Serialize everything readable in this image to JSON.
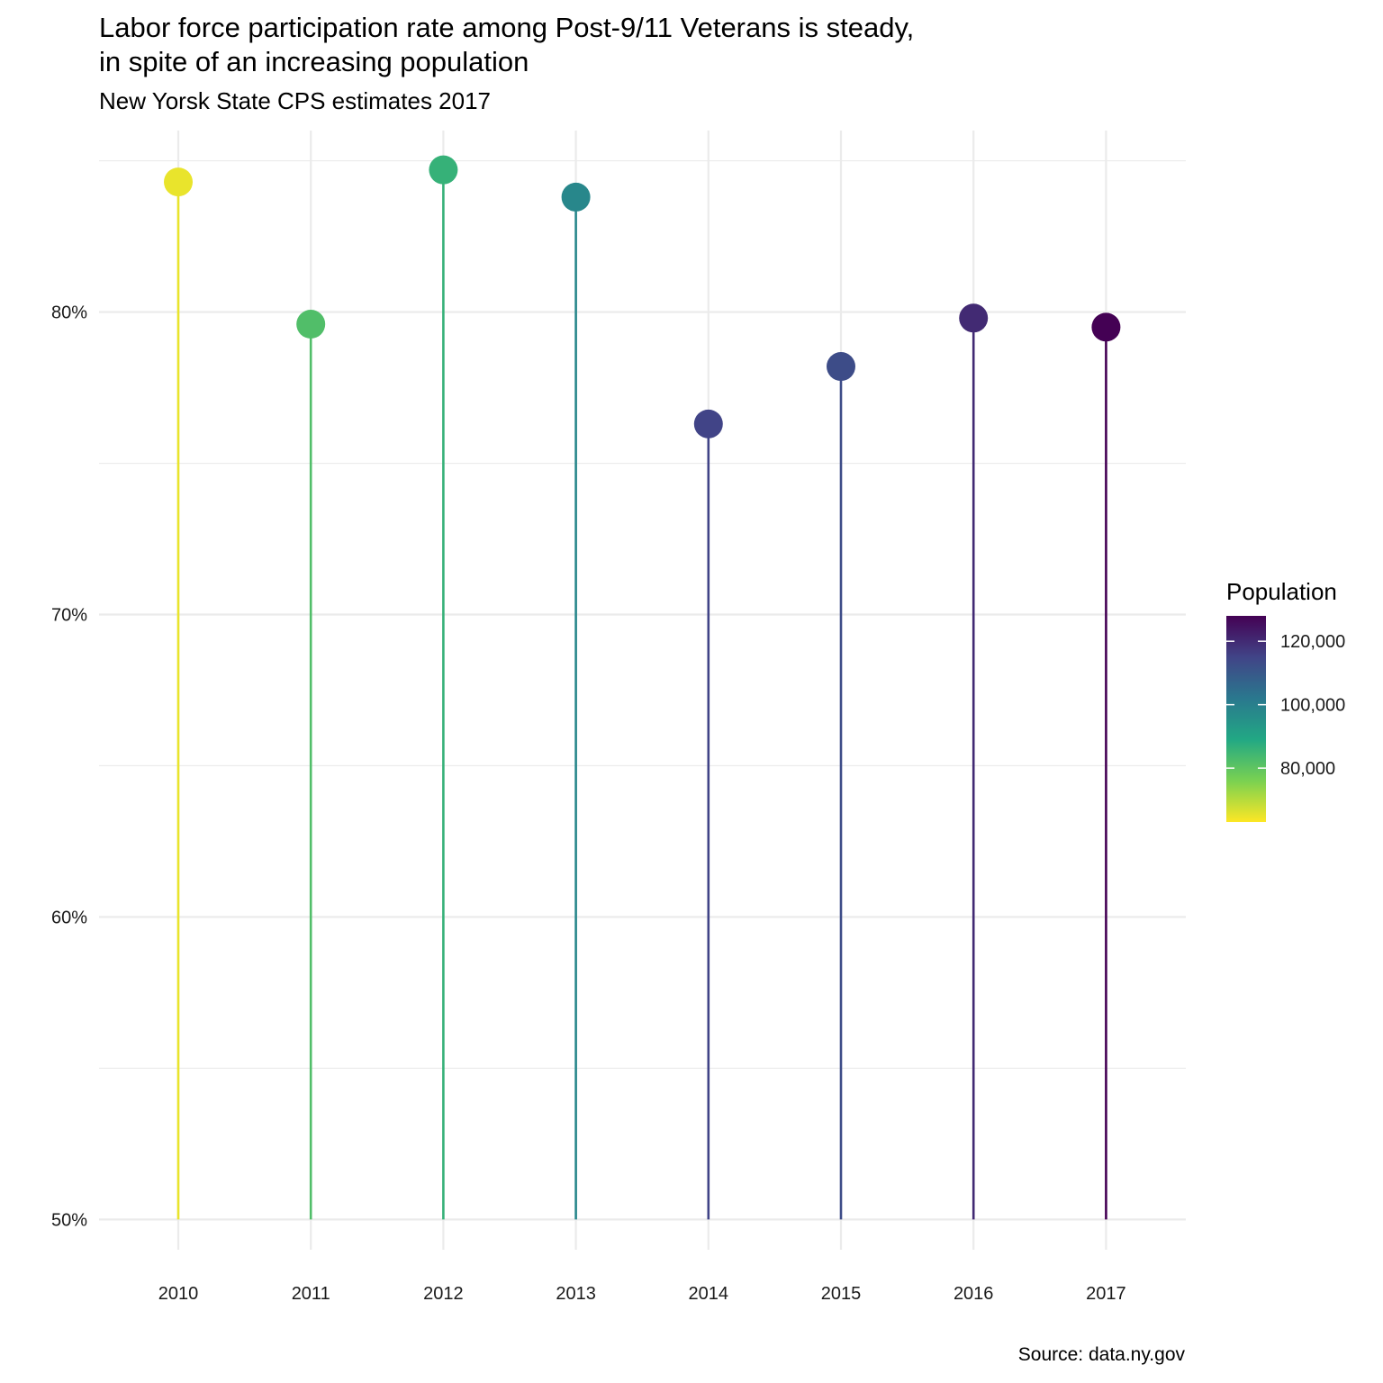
{
  "header": {
    "title_line1": "Labor force participation rate among Post-9/11 Veterans is steady,",
    "title_line2": "in spite of an increasing population",
    "subtitle": "New Yorsk State CPS estimates 2017"
  },
  "caption": "Source: data.ny.gov",
  "chart_data": {
    "type": "lollipop",
    "title": "Labor force participation rate among Post-9/11 Veterans is steady, in spite of an increasing population",
    "subtitle": "New Yorsk State CPS estimates 2017",
    "caption": "Source: data.ny.gov",
    "xlabel": "",
    "ylabel": "",
    "x": [
      "2010",
      "2011",
      "2012",
      "2013",
      "2014",
      "2015",
      "2016",
      "2017"
    ],
    "y": [
      0.843,
      0.796,
      0.847,
      0.838,
      0.763,
      0.782,
      0.798,
      0.795
    ],
    "population": [
      65000,
      82000,
      86000,
      98000,
      115000,
      113000,
      120000,
      128000
    ],
    "baseline": 0.5,
    "ylim": [
      0.49,
      0.86
    ],
    "yticks": [
      0.5,
      0.6,
      0.7,
      0.8
    ],
    "ytick_labels": [
      "50%",
      "60%",
      "70%",
      "80%"
    ],
    "grid": true,
    "legend": {
      "title": "Population",
      "position": "right",
      "range": [
        63000,
        128000
      ],
      "ticks": [
        80000,
        100000,
        120000
      ],
      "tick_labels": [
        "80,000",
        "100,000",
        "120,000"
      ],
      "colors": [
        "#fde725",
        "#7ad151",
        "#22a884",
        "#2a788e",
        "#414487",
        "#440154"
      ]
    }
  }
}
